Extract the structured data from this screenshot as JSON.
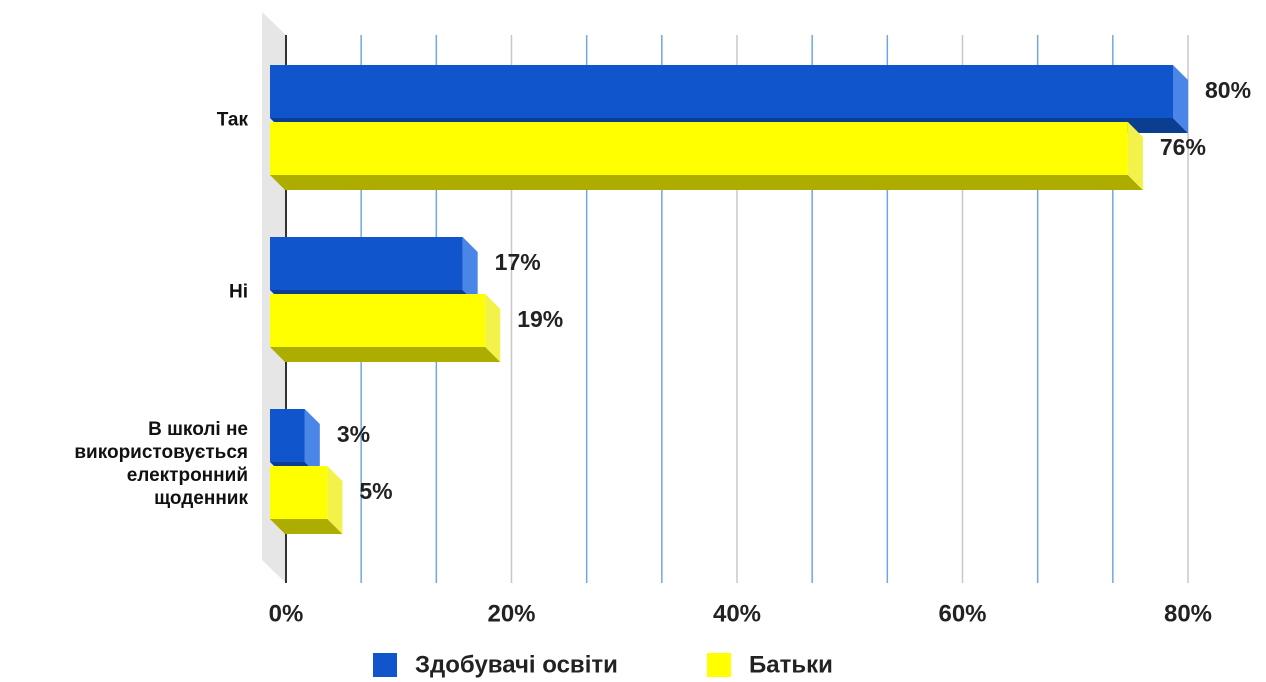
{
  "chart_data": {
    "type": "bar",
    "orientation": "horizontal",
    "3d": true,
    "categories": [
      "Так",
      "Ні",
      "В школі не використовується електронний щоденник"
    ],
    "series": [
      {
        "name": "Здобувачі освіти",
        "color": "#1155cc",
        "values": [
          80,
          17,
          3
        ],
        "value_labels": [
          "80%",
          "17%",
          "3%"
        ]
      },
      {
        "name": "Батьки",
        "color": "#ffff00",
        "values": [
          76,
          19,
          5
        ],
        "value_labels": [
          "76%",
          "19%",
          "5%"
        ]
      }
    ],
    "xlim": [
      0,
      80
    ],
    "xticks": [
      {
        "value": 0,
        "label": "0%"
      },
      {
        "value": 20,
        "label": "20%"
      },
      {
        "value": 40,
        "label": "40%"
      },
      {
        "value": 60,
        "label": "60%"
      },
      {
        "value": 80,
        "label": "80%"
      }
    ],
    "grid": true,
    "legend": "bottom"
  }
}
